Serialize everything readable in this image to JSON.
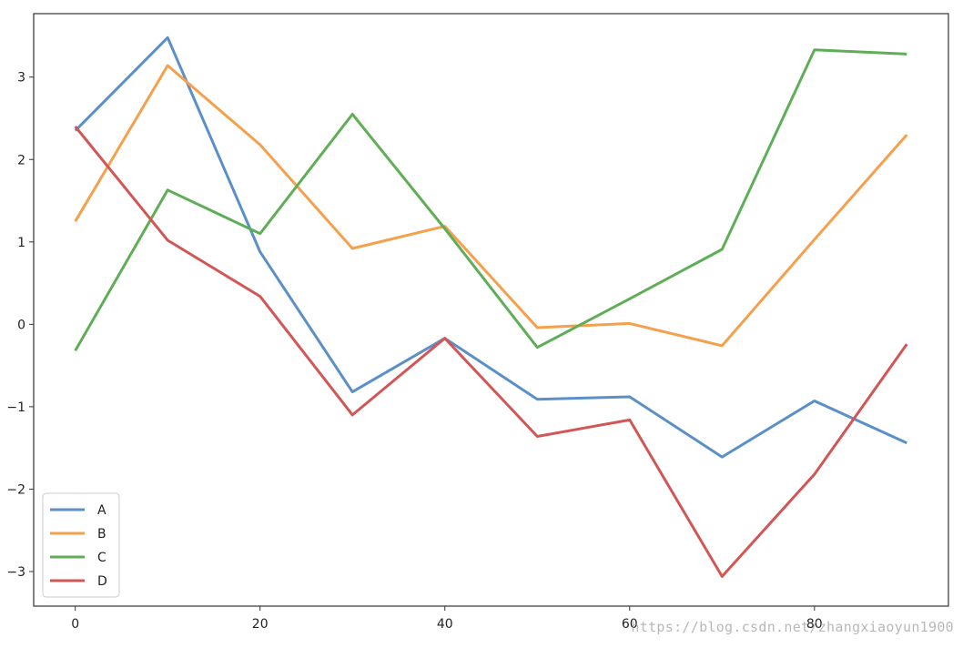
{
  "chart_data": {
    "type": "line",
    "title": "",
    "xlabel": "",
    "ylabel": "",
    "x": [
      0,
      10,
      20,
      30,
      40,
      50,
      60,
      70,
      80,
      90
    ],
    "series": [
      {
        "name": "A",
        "color": "#5b8fc7",
        "values": [
          2.35,
          3.48,
          0.88,
          -0.82,
          -0.17,
          -0.91,
          -0.88,
          -1.61,
          -0.93,
          -1.44
        ]
      },
      {
        "name": "B",
        "color": "#f5a04d",
        "values": [
          1.25,
          3.14,
          2.18,
          0.92,
          1.19,
          -0.04,
          0.01,
          -0.26,
          1.03,
          2.3
        ]
      },
      {
        "name": "C",
        "color": "#5fae57",
        "values": [
          -0.32,
          1.63,
          1.1,
          2.55,
          1.16,
          -0.28,
          0.31,
          0.91,
          3.33,
          3.28
        ]
      },
      {
        "name": "D",
        "color": "#d25656",
        "values": [
          2.4,
          1.02,
          0.34,
          -1.1,
          -0.17,
          -1.36,
          -1.16,
          -3.06,
          -1.82,
          -0.24
        ]
      }
    ],
    "xlim": [
      -4.5,
      94.5
    ],
    "ylim": [
      -3.42,
      3.77
    ],
    "xticks": [
      "0",
      "20",
      "40",
      "60",
      "80"
    ],
    "yticks": [
      "3",
      "2",
      "1",
      "0",
      "−1",
      "−2",
      "−3"
    ],
    "grid": false,
    "legend_position": "lower-left"
  },
  "watermark": "https://blog.csdn.net/zhangxiaoyun1900"
}
